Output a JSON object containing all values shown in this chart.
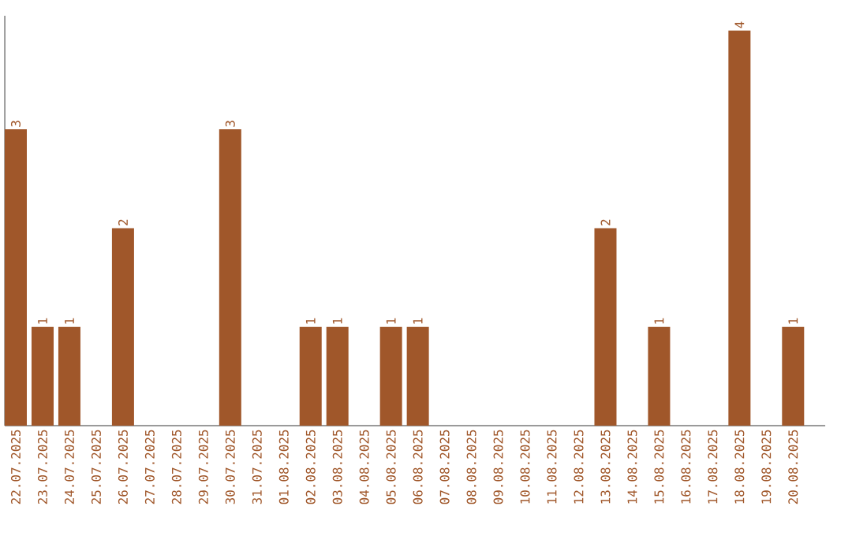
{
  "chart_data": {
    "type": "bar",
    "categories": [
      "22.07.2025",
      "23.07.2025",
      "24.07.2025",
      "25.07.2025",
      "26.07.2025",
      "27.07.2025",
      "28.07.2025",
      "29.07.2025",
      "30.07.2025",
      "31.07.2025",
      "01.08.2025",
      "02.08.2025",
      "03.08.2025",
      "04.08.2025",
      "05.08.2025",
      "06.08.2025",
      "07.08.2025",
      "08.08.2025",
      "09.08.2025",
      "10.08.2025",
      "11.08.2025",
      "12.08.2025",
      "13.08.2025",
      "14.08.2025",
      "15.08.2025",
      "16.08.2025",
      "17.08.2025",
      "18.08.2025",
      "19.08.2025",
      "20.08.2025"
    ],
    "values": [
      3,
      1,
      1,
      0,
      2,
      0,
      0,
      0,
      3,
      0,
      0,
      1,
      1,
      0,
      1,
      1,
      0,
      0,
      0,
      0,
      0,
      0,
      2,
      0,
      1,
      0,
      0,
      4,
      0,
      1
    ],
    "value_labels": [
      "3",
      "1",
      "1",
      null,
      "2",
      null,
      null,
      null,
      "3",
      null,
      null,
      "1",
      "1",
      null,
      "1",
      "1",
      null,
      null,
      null,
      null,
      null,
      null,
      "2",
      null,
      "1",
      null,
      null,
      "4",
      null,
      "1"
    ],
    "color": "#a0572a",
    "ylim": [
      0,
      4.15
    ],
    "tick_labels": "x"
  }
}
